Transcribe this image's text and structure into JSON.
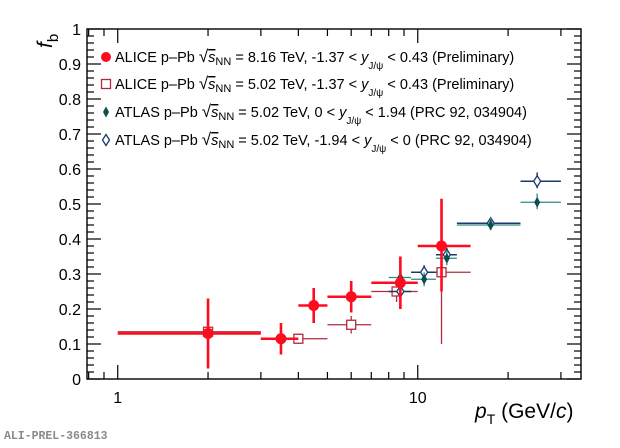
{
  "chart_data": {
    "type": "scatter",
    "title": "",
    "xlabel": "p_T (GeV/c)",
    "xlabel_main": "p",
    "xlabel_sub": "T",
    "xlabel_unit_pre": " (GeV/",
    "xlabel_unit_c": "c",
    "xlabel_unit_post": ")",
    "ylabel": "f_b",
    "ylabel_main": "f",
    "ylabel_sub": "b",
    "xscale": "log",
    "xlim": [
      0.79,
      35
    ],
    "ylim": [
      0,
      1
    ],
    "x_tick_labels": [
      {
        "value": 1,
        "label": "1"
      },
      {
        "value": 10,
        "label": "10"
      }
    ],
    "y_tick_labels": [
      {
        "value": 0,
        "label": "0"
      },
      {
        "value": 0.1,
        "label": "0.1"
      },
      {
        "value": 0.2,
        "label": "0.2"
      },
      {
        "value": 0.3,
        "label": "0.3"
      },
      {
        "value": 0.4,
        "label": "0.4"
      },
      {
        "value": 0.5,
        "label": "0.5"
      },
      {
        "value": 0.6,
        "label": "0.6"
      },
      {
        "value": 0.7,
        "label": "0.7"
      },
      {
        "value": 0.8,
        "label": "0.8"
      },
      {
        "value": 0.9,
        "label": "0.9"
      },
      {
        "value": 1,
        "label": "1"
      }
    ],
    "grid": false,
    "legend_position": "top-left",
    "series": [
      {
        "name": "ALICE p–Pb √sNN = 8.16 TeV, -1.37 < yJ/ψ < 0.43 (Preliminary)",
        "legend": {
          "exp": "ALICE p–Pb ",
          "energy": " = 8.16 TeV, -1.37 < ",
          "rest": " < 0.43 (Preliminary)"
        },
        "marker": "filled-circle",
        "color": "#ff0b1f",
        "points": [
          {
            "x": 2.0,
            "xlo": 1.0,
            "xhi": 3.0,
            "y": 0.13,
            "ylo": 0.03,
            "yhi": 0.23
          },
          {
            "x": 3.5,
            "xlo": 3.0,
            "xhi": 4.0,
            "y": 0.115,
            "ylo": 0.07,
            "yhi": 0.16
          },
          {
            "x": 4.5,
            "xlo": 4.0,
            "xhi": 5.0,
            "y": 0.21,
            "ylo": 0.16,
            "yhi": 0.26
          },
          {
            "x": 6.0,
            "xlo": 5.0,
            "xhi": 7.0,
            "y": 0.235,
            "ylo": 0.19,
            "yhi": 0.28
          },
          {
            "x": 8.75,
            "xlo": 7.0,
            "xhi": 10.0,
            "y": 0.275,
            "ylo": 0.2,
            "yhi": 0.35
          },
          {
            "x": 12.0,
            "xlo": 10.0,
            "xhi": 15.0,
            "y": 0.38,
            "ylo": 0.25,
            "yhi": 0.515
          }
        ]
      },
      {
        "name": "ALICE p–Pb √sNN = 5.02 TeV, -1.37 < yJ/ψ < 0.43 (Preliminary)",
        "legend": {
          "exp": "ALICE p–Pb ",
          "energy": " = 5.02 TeV, -1.37 < ",
          "rest": " < 0.43 (Preliminary)"
        },
        "marker": "open-square",
        "color": "#b22a3c",
        "points": [
          {
            "x": 2.0,
            "xlo": 1.0,
            "xhi": 3.0,
            "y": 0.135,
            "ylo": 0.125,
            "yhi": 0.145
          },
          {
            "x": 4.0,
            "xlo": 3.0,
            "xhi": 5.0,
            "y": 0.115,
            "ylo": 0.1,
            "yhi": 0.13
          },
          {
            "x": 6.0,
            "xlo": 5.0,
            "xhi": 7.0,
            "y": 0.155,
            "ylo": 0.13,
            "yhi": 0.18
          },
          {
            "x": 8.5,
            "xlo": 7.0,
            "xhi": 10.0,
            "y": 0.25,
            "ylo": 0.22,
            "yhi": 0.28
          },
          {
            "x": 12.0,
            "xlo": 10.0,
            "xhi": 15.0,
            "y": 0.305,
            "ylo": 0.1,
            "yhi": 0.51
          }
        ]
      },
      {
        "name": "ATLAS p–Pb √sNN = 5.02 TeV, 0 < yJ/ψ < 1.94 (PRC 92, 034904)",
        "legend": {
          "exp": "ATLAS p–Pb ",
          "energy": " = 5.02 TeV, 0 < ",
          "rest": " < 1.94 (PRC 92, 034904)"
        },
        "marker": "filled-diamond",
        "color": "#0d4f4f",
        "line_color": "#2e8a86",
        "points": [
          {
            "x": 8.75,
            "xlo": 8.0,
            "xhi": 9.5,
            "y": 0.29,
            "ylo": 0.27,
            "yhi": 0.31
          },
          {
            "x": 10.5,
            "xlo": 9.5,
            "xhi": 11.5,
            "y": 0.285,
            "ylo": 0.265,
            "yhi": 0.305
          },
          {
            "x": 12.5,
            "xlo": 11.5,
            "xhi": 13.5,
            "y": 0.345,
            "ylo": 0.325,
            "yhi": 0.365
          },
          {
            "x": 17.5,
            "xlo": 13.5,
            "xhi": 22.0,
            "y": 0.44,
            "ylo": 0.425,
            "yhi": 0.46
          },
          {
            "x": 25.0,
            "xlo": 22.0,
            "xhi": 30.0,
            "y": 0.505,
            "ylo": 0.485,
            "yhi": 0.53
          }
        ]
      },
      {
        "name": "ATLAS p–Pb √sNN = 5.02 TeV, -1.94 < yJ/ψ < 0 (PRC 92, 034904)",
        "legend": {
          "exp": "ATLAS p–Pb ",
          "energy": " = 5.02 TeV, -1.94 < ",
          "rest": " < 0 (PRC 92, 034904)"
        },
        "marker": "open-diamond",
        "color": "#1b3a6b",
        "points": [
          {
            "x": 8.75,
            "xlo": 8.0,
            "xhi": 9.5,
            "y": 0.25,
            "ylo": 0.23,
            "yhi": 0.27
          },
          {
            "x": 10.5,
            "xlo": 9.5,
            "xhi": 11.5,
            "y": 0.305,
            "ylo": 0.285,
            "yhi": 0.325
          },
          {
            "x": 12.5,
            "xlo": 11.5,
            "xhi": 13.5,
            "y": 0.355,
            "ylo": 0.335,
            "yhi": 0.375
          },
          {
            "x": 17.5,
            "xlo": 13.5,
            "xhi": 22.0,
            "y": 0.445,
            "ylo": 0.43,
            "yhi": 0.46
          },
          {
            "x": 25.0,
            "xlo": 22.0,
            "xhi": 30.0,
            "y": 0.565,
            "ylo": 0.545,
            "yhi": 0.59
          }
        ]
      }
    ]
  },
  "legend_text": {
    "s": "s",
    "nn": "NN",
    "y": "y",
    "jpsi": "J/ψ"
  },
  "watermark": "ALI-PREL-366813"
}
